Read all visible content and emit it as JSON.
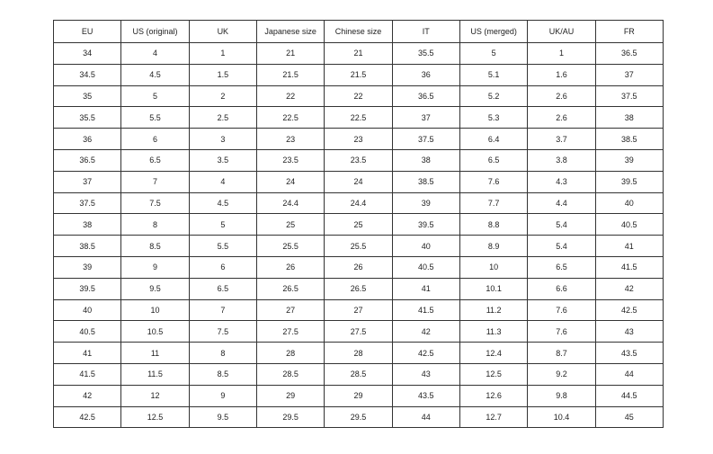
{
  "table": {
    "headers": [
      "EU",
      "US (original)",
      "UK",
      "Japanese size",
      "Chinese size",
      "IT",
      "US (merged)",
      "UK/AU",
      "FR"
    ],
    "rows": [
      [
        "34",
        "4",
        "1",
        "21",
        "21",
        "35.5",
        "5",
        "1",
        "36.5"
      ],
      [
        "34.5",
        "4.5",
        "1.5",
        "21.5",
        "21.5",
        "36",
        "5.1",
        "1.6",
        "37"
      ],
      [
        "35",
        "5",
        "2",
        "22",
        "22",
        "36.5",
        "5.2",
        "2.6",
        "37.5"
      ],
      [
        "35.5",
        "5.5",
        "2.5",
        "22.5",
        "22.5",
        "37",
        "5.3",
        "2.6",
        "38"
      ],
      [
        "36",
        "6",
        "3",
        "23",
        "23",
        "37.5",
        "6.4",
        "3.7",
        "38.5"
      ],
      [
        "36.5",
        "6.5",
        "3.5",
        "23.5",
        "23.5",
        "38",
        "6.5",
        "3.8",
        "39"
      ],
      [
        "37",
        "7",
        "4",
        "24",
        "24",
        "38.5",
        "7.6",
        "4.3",
        "39.5"
      ],
      [
        "37.5",
        "7.5",
        "4.5",
        "24.4",
        "24.4",
        "39",
        "7.7",
        "4.4",
        "40"
      ],
      [
        "38",
        "8",
        "5",
        "25",
        "25",
        "39.5",
        "8.8",
        "5.4",
        "40.5"
      ],
      [
        "38.5",
        "8.5",
        "5.5",
        "25.5",
        "25.5",
        "40",
        "8.9",
        "5.4",
        "41"
      ],
      [
        "39",
        "9",
        "6",
        "26",
        "26",
        "40.5",
        "10",
        "6.5",
        "41.5"
      ],
      [
        "39.5",
        "9.5",
        "6.5",
        "26.5",
        "26.5",
        "41",
        "10.1",
        "6.6",
        "42"
      ],
      [
        "40",
        "10",
        "7",
        "27",
        "27",
        "41.5",
        "11.2",
        "7.6",
        "42.5"
      ],
      [
        "40.5",
        "10.5",
        "7.5",
        "27.5",
        "27.5",
        "42",
        "11.3",
        "7.6",
        "43"
      ],
      [
        "41",
        "11",
        "8",
        "28",
        "28",
        "42.5",
        "12.4",
        "8.7",
        "43.5"
      ],
      [
        "41.5",
        "11.5",
        "8.5",
        "28.5",
        "28.5",
        "43",
        "12.5",
        "9.2",
        "44"
      ],
      [
        "42",
        "12",
        "9",
        "29",
        "29",
        "43.5",
        "12.6",
        "9.8",
        "44.5"
      ],
      [
        "42.5",
        "12.5",
        "9.5",
        "29.5",
        "29.5",
        "44",
        "12.7",
        "10.4",
        "45"
      ]
    ]
  }
}
